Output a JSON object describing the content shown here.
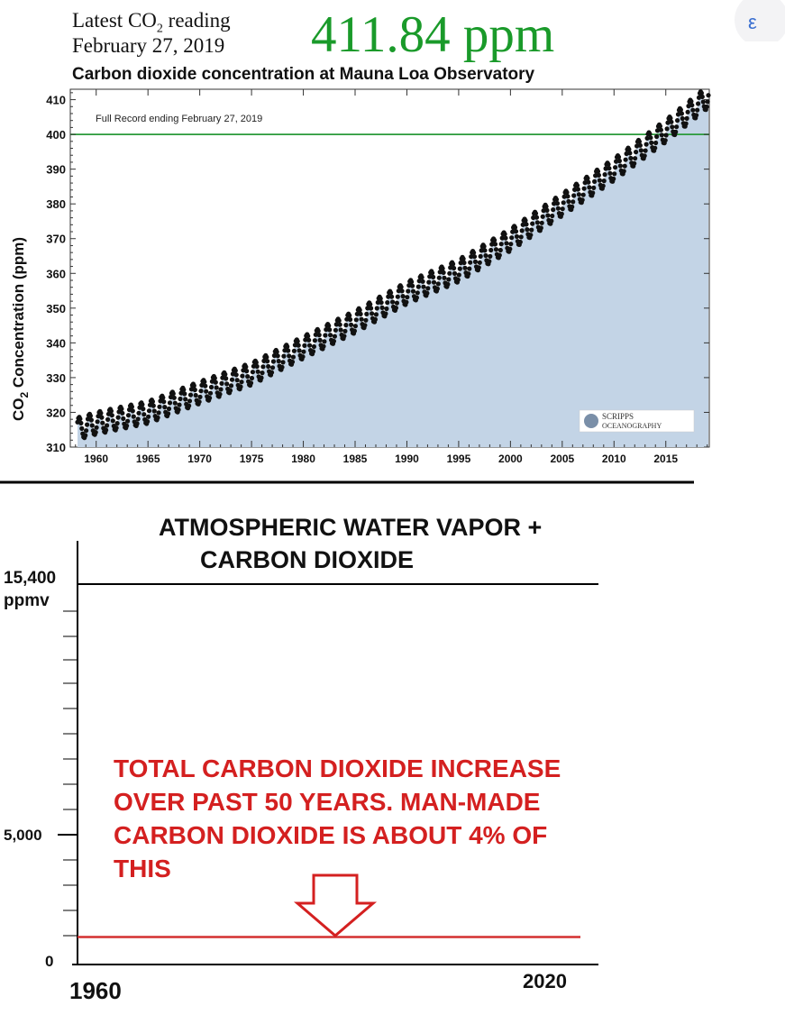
{
  "header": {
    "latest_label": "Latest CO",
    "latest_sub": "2",
    "latest_suffix": " reading",
    "date": "February 27, 2019",
    "reading": "411.84 ppm",
    "chart_title": "Carbon dioxide concentration at Mauna Loa Observatory"
  },
  "colors": {
    "reading_green": "#1a9a2a",
    "fill_blue": "#c3d4e6",
    "ref_line_green": "#2a9a3a",
    "red_text": "#d42020",
    "red_line": "#d43030"
  },
  "chart_data": [
    {
      "type": "area",
      "title": "Carbon dioxide concentration at Mauna Loa Observatory",
      "annotation": "Full Record ending February 27, 2019",
      "ylabel_main": "CO",
      "ylabel_sub": "2",
      "ylabel_rest": " Concentration (ppm)",
      "xlim": [
        1957.5,
        2019.2
      ],
      "ylim": [
        310,
        413
      ],
      "xticks": [
        1960,
        1965,
        1970,
        1975,
        1980,
        1985,
        1990,
        1995,
        2000,
        2005,
        2010,
        2015
      ],
      "yticks": [
        310,
        320,
        330,
        340,
        350,
        360,
        370,
        380,
        390,
        400,
        410
      ],
      "reference_line": 400,
      "grid": false,
      "series": [
        {
          "x": [
            1958.2,
            1960,
            1965,
            1970,
            1975,
            1980,
            1985,
            1990,
            1995,
            2000,
            2005,
            2010,
            2015,
            2019.15
          ],
          "values": [
            315.3,
            316.9,
            320.0,
            325.7,
            331.1,
            338.7,
            346.1,
            354.4,
            360.8,
            369.7,
            379.8,
            389.9,
            401.0,
            411.0
          ]
        }
      ],
      "seasonal_amplitude_ppm": 3.2,
      "logo_line1": "SCRIPPS",
      "logo_line2": "OCEANOGRAPHY"
    },
    {
      "type": "line",
      "title_line1": "ATMOSPHERIC WATER VAPOR +",
      "title_line2": "CARBON DIOXIDE",
      "ylim": [
        0,
        15400
      ],
      "ytick_labels": {
        "top": "15,400",
        "top_unit": "ppmv",
        "mid": "5,000",
        "bottom": "0"
      },
      "xtick_labels": [
        "1960",
        "2020"
      ],
      "series": [
        {
          "x": [
            1960,
            2020
          ],
          "values": [
            15400,
            15400
          ]
        },
        {
          "x": [
            1960,
            2020
          ],
          "values": [
            400,
            400
          ]
        }
      ],
      "annotation_lines": [
        "TOTAL CARBON DIOXIDE INCREASE",
        "OVER PAST 50 YEARS.  MAN-MADE",
        "CARBON DIOXIDE IS ABOUT 4% OF",
        "THIS"
      ]
    }
  ]
}
